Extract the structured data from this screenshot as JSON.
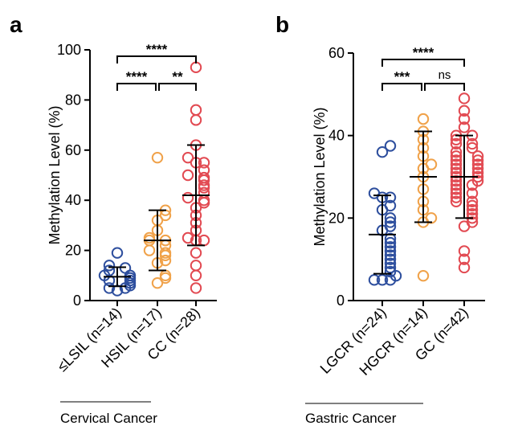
{
  "chart_data": [
    {
      "type": "scatter",
      "panel_label": "a",
      "ylabel": "Methylation Level (%)",
      "ylim": [
        0,
        100
      ],
      "yticks": [
        0,
        20,
        40,
        60,
        80,
        100
      ],
      "group_label": "Cervical Cancer",
      "categories": [
        "≤LSIL (n=14)",
        "HSIL (n=17)",
        "CC (n=28)"
      ],
      "series": [
        {
          "color": "#2e4f9e",
          "mean": 9.5,
          "sd": 3.8,
          "values": [
            4,
            5,
            5,
            6,
            7,
            8,
            8,
            9,
            10,
            10,
            12,
            13,
            14,
            19
          ]
        },
        {
          "color": "#f0a24a",
          "mean": 24,
          "sd": 12,
          "values": [
            7,
            9,
            10,
            15,
            16,
            18,
            19,
            20,
            22,
            24,
            24,
            25,
            28,
            32,
            34,
            36,
            57
          ]
        },
        {
          "color": "#e24a52",
          "mean": 42,
          "sd": 20,
          "values": [
            5,
            10,
            14,
            19,
            24,
            24,
            25,
            28,
            31,
            34,
            37,
            39,
            40,
            41,
            43,
            45,
            46,
            48,
            49,
            50,
            52,
            55,
            55,
            57,
            62,
            72,
            76,
            93
          ]
        }
      ],
      "comparisons": [
        {
          "from": 0,
          "to": 1,
          "label": "****"
        },
        {
          "from": 1,
          "to": 2,
          "label": "**"
        },
        {
          "from": 0,
          "to": 2,
          "label": "****"
        }
      ]
    },
    {
      "type": "scatter",
      "panel_label": "b",
      "ylabel": "Methylation Level (%)",
      "ylim": [
        0,
        60
      ],
      "yticks": [
        0,
        20,
        40,
        60
      ],
      "group_label": "Gastric Cancer",
      "categories": [
        "LGCR (n=24)",
        "HGCR (n=14)",
        "GC (n=42)"
      ],
      "series": [
        {
          "color": "#2e4f9e",
          "mean": 16,
          "sd": 9.5,
          "values": [
            5,
            5,
            5,
            6,
            7,
            8,
            9,
            10,
            11,
            12,
            13,
            14,
            15,
            17,
            18,
            19,
            20,
            22,
            23,
            25,
            25,
            26,
            36,
            37.5
          ]
        },
        {
          "color": "#f0a24a",
          "mean": 30,
          "sd": 11,
          "values": [
            6,
            19,
            20,
            22,
            24,
            27,
            30,
            32,
            33,
            35,
            37,
            39,
            41,
            44
          ]
        },
        {
          "color": "#e24a52",
          "mean": 30,
          "sd": 10,
          "values": [
            8,
            10,
            12,
            18,
            19,
            20,
            21,
            22,
            23,
            24,
            24,
            25,
            26,
            26,
            27,
            28,
            28,
            29,
            29,
            30,
            30,
            31,
            31,
            32,
            32,
            33,
            33,
            34,
            34,
            35,
            35,
            36,
            37,
            38,
            38,
            39,
            40,
            40,
            42,
            44,
            46,
            49
          ]
        }
      ],
      "comparisons": [
        {
          "from": 0,
          "to": 1,
          "label": "***"
        },
        {
          "from": 1,
          "to": 2,
          "label": "ns"
        },
        {
          "from": 0,
          "to": 2,
          "label": "****"
        }
      ]
    }
  ]
}
